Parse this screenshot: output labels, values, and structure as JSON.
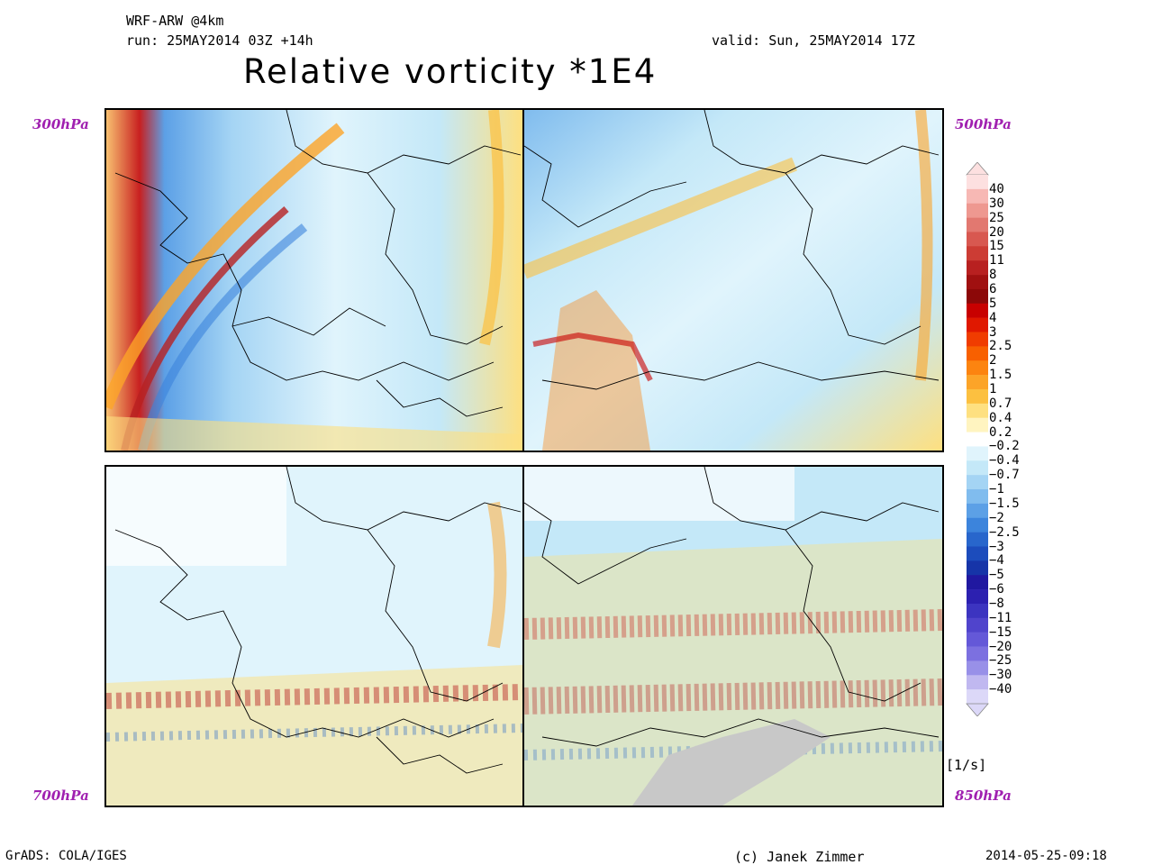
{
  "header": {
    "model": "WRF-ARW @4km",
    "run": "run: 25MAY2014 03Z +14h",
    "valid": "valid: Sun, 25MAY2014 17Z",
    "title": "Relative vorticity *1E4"
  },
  "panels": [
    {
      "id": "p300",
      "level": "300hPa",
      "position": "top-left"
    },
    {
      "id": "p500",
      "level": "500hPa",
      "position": "top-right"
    },
    {
      "id": "p700",
      "level": "700hPa",
      "position": "bottom-left"
    },
    {
      "id": "p850",
      "level": "850hPa",
      "position": "bottom-right"
    }
  ],
  "colorbar": {
    "units": "[1/s]",
    "labels": [
      "40",
      "30",
      "25",
      "20",
      "15",
      "11",
      "8",
      "6",
      "5",
      "4",
      "3",
      "2.5",
      "2",
      "1.5",
      "1",
      "0.7",
      "0.4",
      "0.2",
      "−0.2",
      "−0.4",
      "−0.7",
      "−1",
      "−1.5",
      "−2",
      "−2.5",
      "−3",
      "−4",
      "−5",
      "−6",
      "−8",
      "−11",
      "−15",
      "−20",
      "−25",
      "−30",
      "−40"
    ],
    "colors": [
      "#fde0e0",
      "#f7b8b4",
      "#ee9890",
      "#e27870",
      "#d85850",
      "#cc3c34",
      "#b82020",
      "#a01010",
      "#8c0808",
      "#c80000",
      "#e01800",
      "#f03c00",
      "#f86000",
      "#fc8410",
      "#fca428",
      "#fcc040",
      "#fee080",
      "#fff4c0",
      "#ffffff",
      "#e0f4fc",
      "#c4e8f8",
      "#a4d4f4",
      "#80bcee",
      "#5ca0e6",
      "#3c84dc",
      "#2866cc",
      "#1c4cbc",
      "#1634a8",
      "#2018a0",
      "#2c20b0",
      "#3c34c0",
      "#5044cc",
      "#6458d8",
      "#7c70e0",
      "#9890e8",
      "#c0b8f0",
      "#dcd8f8"
    ]
  },
  "footer": {
    "left": "GrADS: COLA/IGES",
    "credit": "(c) Janek Zimmer",
    "timestamp": "2014-05-25-09:18"
  }
}
